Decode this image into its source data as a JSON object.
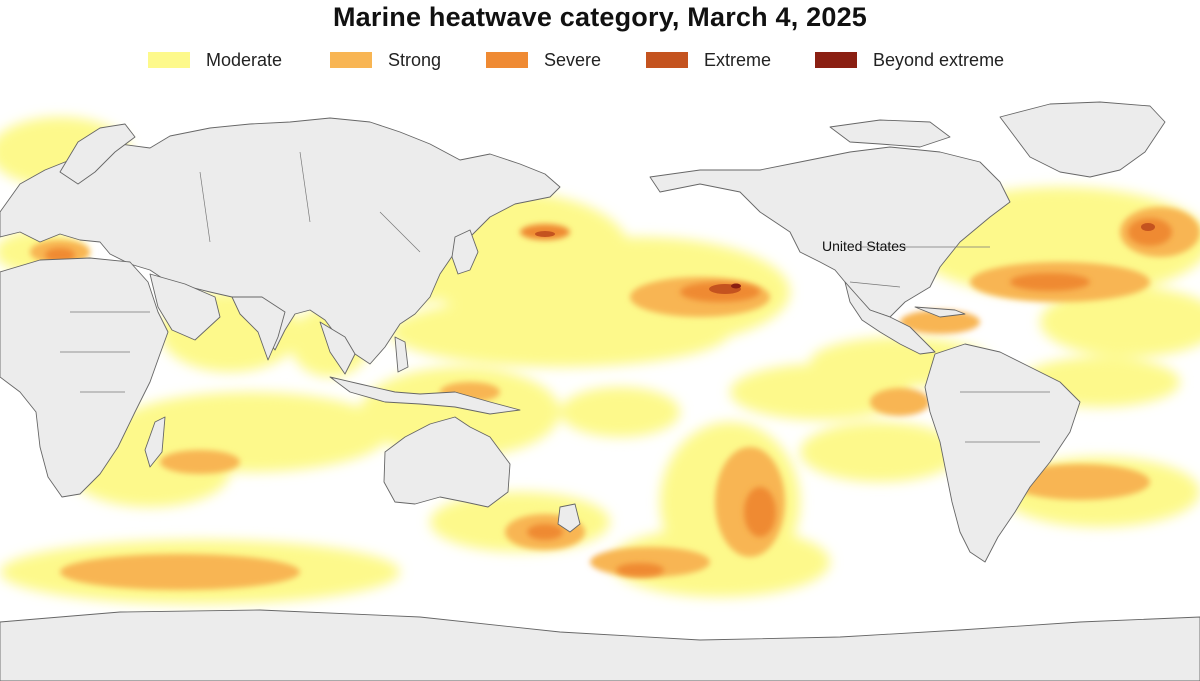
{
  "title": "Marine heatwave category, March 4, 2025",
  "legend": [
    {
      "label": "Moderate",
      "color": "#fdf98b"
    },
    {
      "label": "Strong",
      "color": "#f8b553"
    },
    {
      "label": "Severe",
      "color": "#ef8a33"
    },
    {
      "label": "Extreme",
      "color": "#c4531f"
    },
    {
      "label": "Beyond extreme",
      "color": "#8a1f12"
    }
  ],
  "map": {
    "ocean_color": "#ffffff",
    "land_color": "#ececec",
    "border_color": "#666666",
    "labels": {
      "united_states": "United States"
    }
  }
}
